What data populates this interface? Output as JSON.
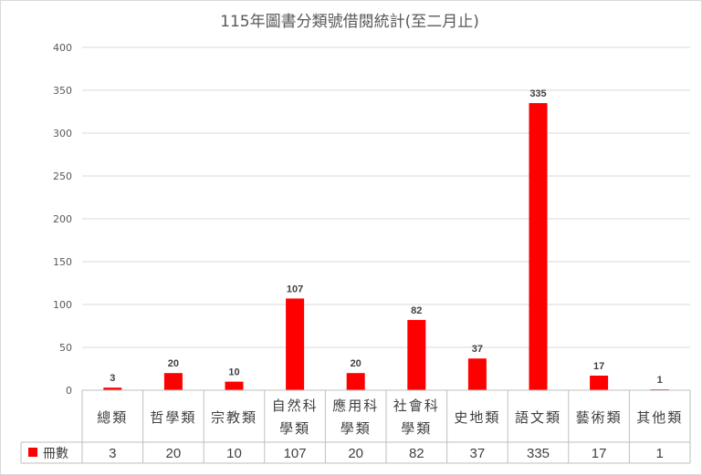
{
  "chart_data": {
    "type": "bar",
    "title": "115年圖書分類號借閱統計(至二月止)",
    "categories": [
      "總類",
      "哲學類",
      "宗教類",
      "自然科學類",
      "應用科學類",
      "社會科學類",
      "史地類",
      "語文類",
      "藝術類",
      "其他類"
    ],
    "category_lines": [
      [
        "總類"
      ],
      [
        "哲學類"
      ],
      [
        "宗教類"
      ],
      [
        "自然科",
        "學類"
      ],
      [
        "應用科",
        "學類"
      ],
      [
        "社會科",
        "學類"
      ],
      [
        "史地類"
      ],
      [
        "語文類"
      ],
      [
        "藝術類"
      ],
      [
        "其他類"
      ]
    ],
    "series": [
      {
        "name": "冊數",
        "values": [
          3,
          20,
          10,
          107,
          20,
          82,
          37,
          335,
          17,
          1
        ],
        "color": "#ff0000"
      }
    ],
    "yticks": [
      0,
      50,
      100,
      150,
      200,
      250,
      300,
      350,
      400
    ],
    "ylim": [
      0,
      400
    ],
    "grid": true,
    "legend": "data-table-left",
    "data_table": true
  }
}
